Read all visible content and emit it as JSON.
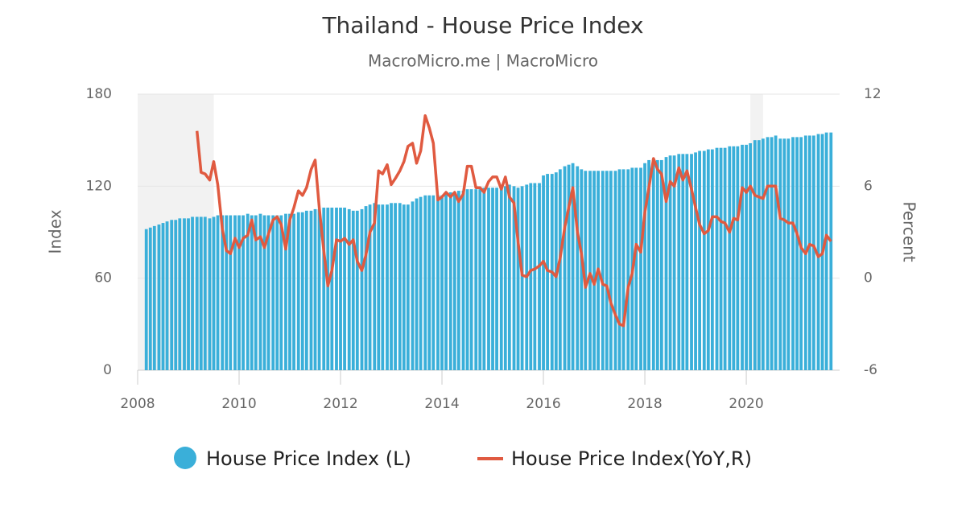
{
  "chart_data": {
    "type": "bar_line",
    "title": "Thailand - House Price Index",
    "subtitle": "MacroMicro.me | MacroMicro",
    "y_label": "Index",
    "y2_label": "Percent",
    "xlim": [
      2008,
      2021.84
    ],
    "xticks": [
      2008,
      2010,
      2012,
      2014,
      2016,
      2018,
      2020
    ],
    "ylim": [
      0,
      180
    ],
    "yticks": [
      0,
      60,
      120,
      180
    ],
    "y2lim": [
      -6,
      12
    ],
    "y2ticks": [
      -6,
      0,
      6,
      12
    ],
    "grid": true,
    "shaded_ranges": [
      [
        2008,
        2009.5
      ],
      [
        2020.08,
        2020.33
      ]
    ],
    "x": [
      2008.17,
      2008.25,
      2008.33,
      2008.42,
      2008.5,
      2008.58,
      2008.67,
      2008.75,
      2008.83,
      2008.92,
      2009,
      2009.08,
      2009.17,
      2009.25,
      2009.33,
      2009.42,
      2009.5,
      2009.58,
      2009.67,
      2009.75,
      2009.83,
      2009.92,
      2010,
      2010.08,
      2010.17,
      2010.25,
      2010.33,
      2010.42,
      2010.5,
      2010.58,
      2010.67,
      2010.75,
      2010.83,
      2010.92,
      2011,
      2011.08,
      2011.17,
      2011.25,
      2011.33,
      2011.42,
      2011.5,
      2011.58,
      2011.67,
      2011.75,
      2011.83,
      2011.92,
      2012,
      2012.08,
      2012.17,
      2012.25,
      2012.33,
      2012.42,
      2012.5,
      2012.58,
      2012.67,
      2012.75,
      2012.83,
      2012.92,
      2013,
      2013.08,
      2013.17,
      2013.25,
      2013.33,
      2013.42,
      2013.5,
      2013.58,
      2013.67,
      2013.75,
      2013.83,
      2013.92,
      2014,
      2014.08,
      2014.17,
      2014.25,
      2014.33,
      2014.42,
      2014.5,
      2014.58,
      2014.67,
      2014.75,
      2014.83,
      2014.92,
      2015,
      2015.08,
      2015.17,
      2015.25,
      2015.33,
      2015.42,
      2015.5,
      2015.58,
      2015.67,
      2015.75,
      2015.83,
      2015.92,
      2016,
      2016.08,
      2016.17,
      2016.25,
      2016.33,
      2016.42,
      2016.5,
      2016.58,
      2016.67,
      2016.75,
      2016.83,
      2016.92,
      2017,
      2017.08,
      2017.17,
      2017.25,
      2017.33,
      2017.42,
      2017.5,
      2017.58,
      2017.67,
      2017.75,
      2017.83,
      2017.92,
      2018,
      2018.08,
      2018.17,
      2018.25,
      2018.33,
      2018.42,
      2018.5,
      2018.58,
      2018.67,
      2018.75,
      2018.83,
      2018.92,
      2019,
      2019.08,
      2019.17,
      2019.25,
      2019.33,
      2019.42,
      2019.5,
      2019.58,
      2019.67,
      2019.75,
      2019.83,
      2019.92,
      2020,
      2020.08,
      2020.17,
      2020.25,
      2020.33,
      2020.42,
      2020.5,
      2020.58,
      2020.67,
      2020.75,
      2020.83,
      2020.92,
      2021,
      2021.08,
      2021.17,
      2021.25,
      2021.33,
      2021.42,
      2021.5,
      2021.58,
      2021.67
    ],
    "series": [
      {
        "name": "House Price Index (L)",
        "color": "#3aafd9",
        "axis": "y",
        "values": [
          92,
          93,
          94,
          95,
          96,
          97,
          98,
          98,
          99,
          99,
          99,
          100,
          100,
          100,
          100,
          99,
          100,
          101,
          101,
          101,
          101,
          101,
          101,
          101,
          102,
          101,
          101,
          102,
          101,
          101,
          101,
          101,
          101,
          102,
          102,
          102,
          103,
          103,
          104,
          104,
          105,
          105,
          106,
          106,
          106,
          106,
          106,
          106,
          105,
          104,
          104,
          105,
          107,
          108,
          109,
          108,
          108,
          108,
          109,
          109,
          109,
          108,
          108,
          110,
          112,
          113,
          114,
          114,
          114,
          114,
          114,
          115,
          116,
          116,
          117,
          117,
          118,
          118,
          118,
          118,
          119,
          119,
          119,
          119,
          120,
          120,
          121,
          120,
          119,
          120,
          121,
          122,
          122,
          122,
          127,
          128,
          128,
          129,
          131,
          133,
          134,
          135,
          133,
          131,
          130,
          130,
          130,
          130,
          130,
          130,
          130,
          130,
          131,
          131,
          131,
          132,
          132,
          132,
          135,
          137,
          138,
          137,
          137,
          139,
          140,
          140,
          141,
          141,
          141,
          141,
          142,
          143,
          143,
          144,
          144,
          145,
          145,
          145,
          146,
          146,
          146,
          147,
          147,
          148,
          150,
          150,
          151,
          152,
          152,
          153,
          151,
          151,
          151,
          152,
          152,
          152,
          153,
          153,
          153,
          154,
          154,
          155,
          155
        ]
      },
      {
        "name": "House Price Index(YoY,R)",
        "color": "#e05a40",
        "axis": "y2",
        "values": [
          null,
          null,
          null,
          null,
          null,
          null,
          null,
          null,
          null,
          null,
          null,
          null,
          9.6,
          6.9,
          6.8,
          6.4,
          7.6,
          6.1,
          3.2,
          1.8,
          1.6,
          2.6,
          2.0,
          2.6,
          2.8,
          3.8,
          2.5,
          2.7,
          2.0,
          2.9,
          3.8,
          4.0,
          3.5,
          1.9,
          3.8,
          4.6,
          5.7,
          5.4,
          5.9,
          7.1,
          7.7,
          4.6,
          1.8,
          -0.5,
          0.5,
          2.5,
          2.4,
          2.6,
          2.2,
          2.5,
          1.1,
          0.5,
          1.5,
          3.0,
          3.6,
          7.0,
          6.8,
          7.4,
          6.1,
          6.5,
          7.0,
          7.6,
          8.6,
          8.8,
          7.5,
          8.3,
          10.6,
          9.8,
          8.8,
          5.1,
          5.3,
          5.6,
          5.3,
          5.6,
          5.0,
          5.5,
          7.3,
          7.3,
          5.9,
          5.9,
          5.6,
          6.3,
          6.6,
          6.6,
          5.8,
          6.6,
          5.3,
          4.9,
          2.4,
          0.2,
          0.1,
          0.5,
          0.6,
          0.8,
          1.1,
          0.5,
          0.4,
          0.1,
          1.3,
          3.3,
          4.6,
          5.9,
          3.0,
          1.6,
          -0.6,
          0.3,
          -0.4,
          0.6,
          -0.4,
          -0.5,
          -1.6,
          -2.4,
          -3.0,
          -3.1,
          -0.6,
          0.3,
          2.2,
          1.7,
          4.3,
          5.9,
          7.8,
          7.1,
          6.8,
          5.0,
          6.3,
          6.0,
          7.2,
          6.4,
          7.0,
          5.8,
          4.6,
          3.5,
          2.9,
          3.1,
          4.0,
          4.0,
          3.7,
          3.6,
          3.0,
          3.9,
          3.8,
          5.9,
          5.6,
          6.0,
          5.4,
          5.3,
          5.2,
          6.0,
          6.0,
          6.0,
          3.9,
          3.8,
          3.6,
          3.6,
          2.9,
          2.0,
          1.6,
          2.2,
          2.1,
          1.4,
          1.6,
          2.8,
          2.4
        ]
      }
    ]
  }
}
